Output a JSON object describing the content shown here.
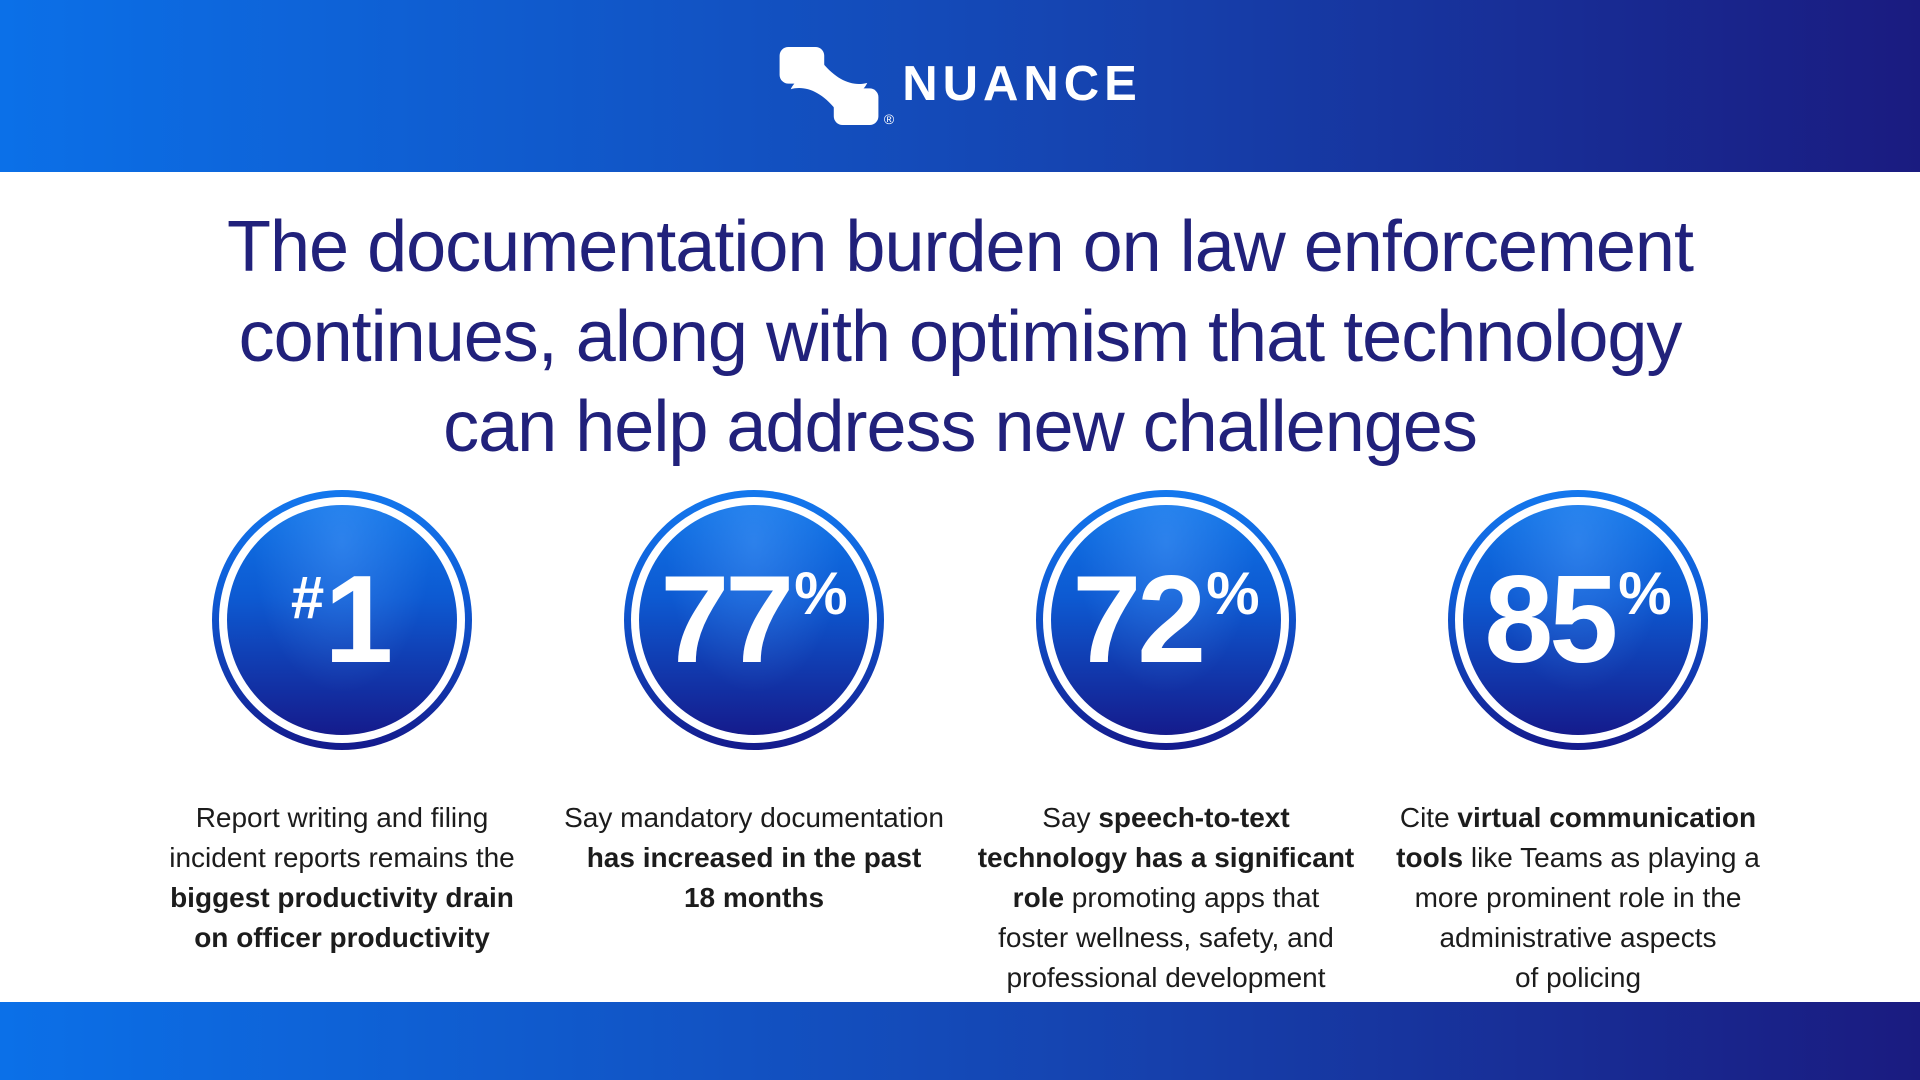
{
  "brand": {
    "wordmark": "NUANCE",
    "registered_mark": "®",
    "icon": "nuance-swoosh-icon"
  },
  "colors": {
    "bar_gradient_left": "#0b70e8",
    "bar_gradient_right": "#1a1b80",
    "circle_gradient_top": "#1478ee",
    "circle_gradient_bottom": "#141a8c",
    "headline_text": "#21217b",
    "body_text": "#1c1c1c",
    "logo_white": "#ffffff"
  },
  "headline": {
    "lines": [
      "The documentation burden on law enforcement",
      "continues, along with optimism that technology",
      "can help address new challenges"
    ]
  },
  "stats": [
    {
      "prefix": "#",
      "value": "1",
      "suffix": "",
      "description_lines": [
        [
          {
            "t": "Report writing and filing",
            "b": false
          }
        ],
        [
          {
            "t": "incident reports remains the",
            "b": false
          }
        ],
        [
          {
            "t": "biggest productivity drain",
            "b": true
          }
        ],
        [
          {
            "t": "on officer productivity",
            "b": true
          }
        ]
      ]
    },
    {
      "prefix": "",
      "value": "77",
      "suffix": "%",
      "description_lines": [
        [
          {
            "t": "Say mandatory documentation",
            "b": false
          }
        ],
        [
          {
            "t": "has increased in the past",
            "b": true
          }
        ],
        [
          {
            "t": "18 months",
            "b": true
          }
        ]
      ]
    },
    {
      "prefix": "",
      "value": "72",
      "suffix": "%",
      "description_lines": [
        [
          {
            "t": "Say ",
            "b": false
          },
          {
            "t": "speech-to-text",
            "b": true
          }
        ],
        [
          {
            "t": "technology has a significant",
            "b": true
          }
        ],
        [
          {
            "t": "role",
            "b": true
          },
          {
            "t": " promoting apps that",
            "b": false
          }
        ],
        [
          {
            "t": "foster wellness, safety, and",
            "b": false
          }
        ],
        [
          {
            "t": "professional development",
            "b": false
          }
        ]
      ]
    },
    {
      "prefix": "",
      "value": "85",
      "suffix": "%",
      "description_lines": [
        [
          {
            "t": "Cite ",
            "b": false
          },
          {
            "t": "virtual communication",
            "b": true
          }
        ],
        [
          {
            "t": "tools",
            "b": true
          },
          {
            "t": " like Teams as playing a",
            "b": false
          }
        ],
        [
          {
            "t": "more prominent role in the",
            "b": false
          }
        ],
        [
          {
            "t": "administrative aspects",
            "b": false
          }
        ],
        [
          {
            "t": "of policing",
            "b": false
          }
        ]
      ]
    }
  ]
}
